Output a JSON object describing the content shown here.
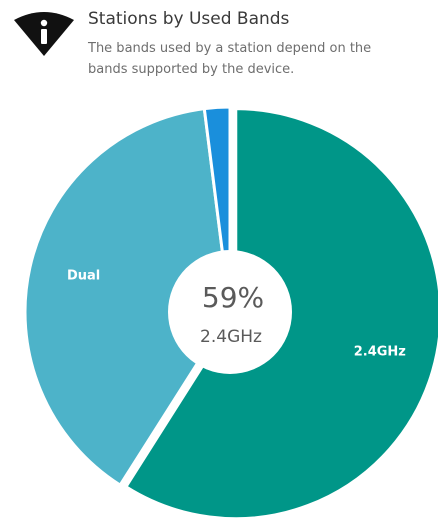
{
  "header": {
    "title": "Stations by Used Bands",
    "subtitle_line1": "The bands used by a station depend on the",
    "subtitle_line2": "bands supported by the device.",
    "icon": "info-icon"
  },
  "chart_data": {
    "type": "pie",
    "title": "Stations by Used Bands",
    "slices": [
      {
        "label": "2.4GHz",
        "value": 59,
        "color": "#009688",
        "show_label": true
      },
      {
        "label": "Dual",
        "value": 39,
        "color": "#4db3c9",
        "show_label": true
      },
      {
        "label": "",
        "value": 2,
        "color": "#1a8fdc",
        "show_label": false
      }
    ],
    "center": {
      "value": "59%",
      "label": "2.4GHz"
    }
  }
}
